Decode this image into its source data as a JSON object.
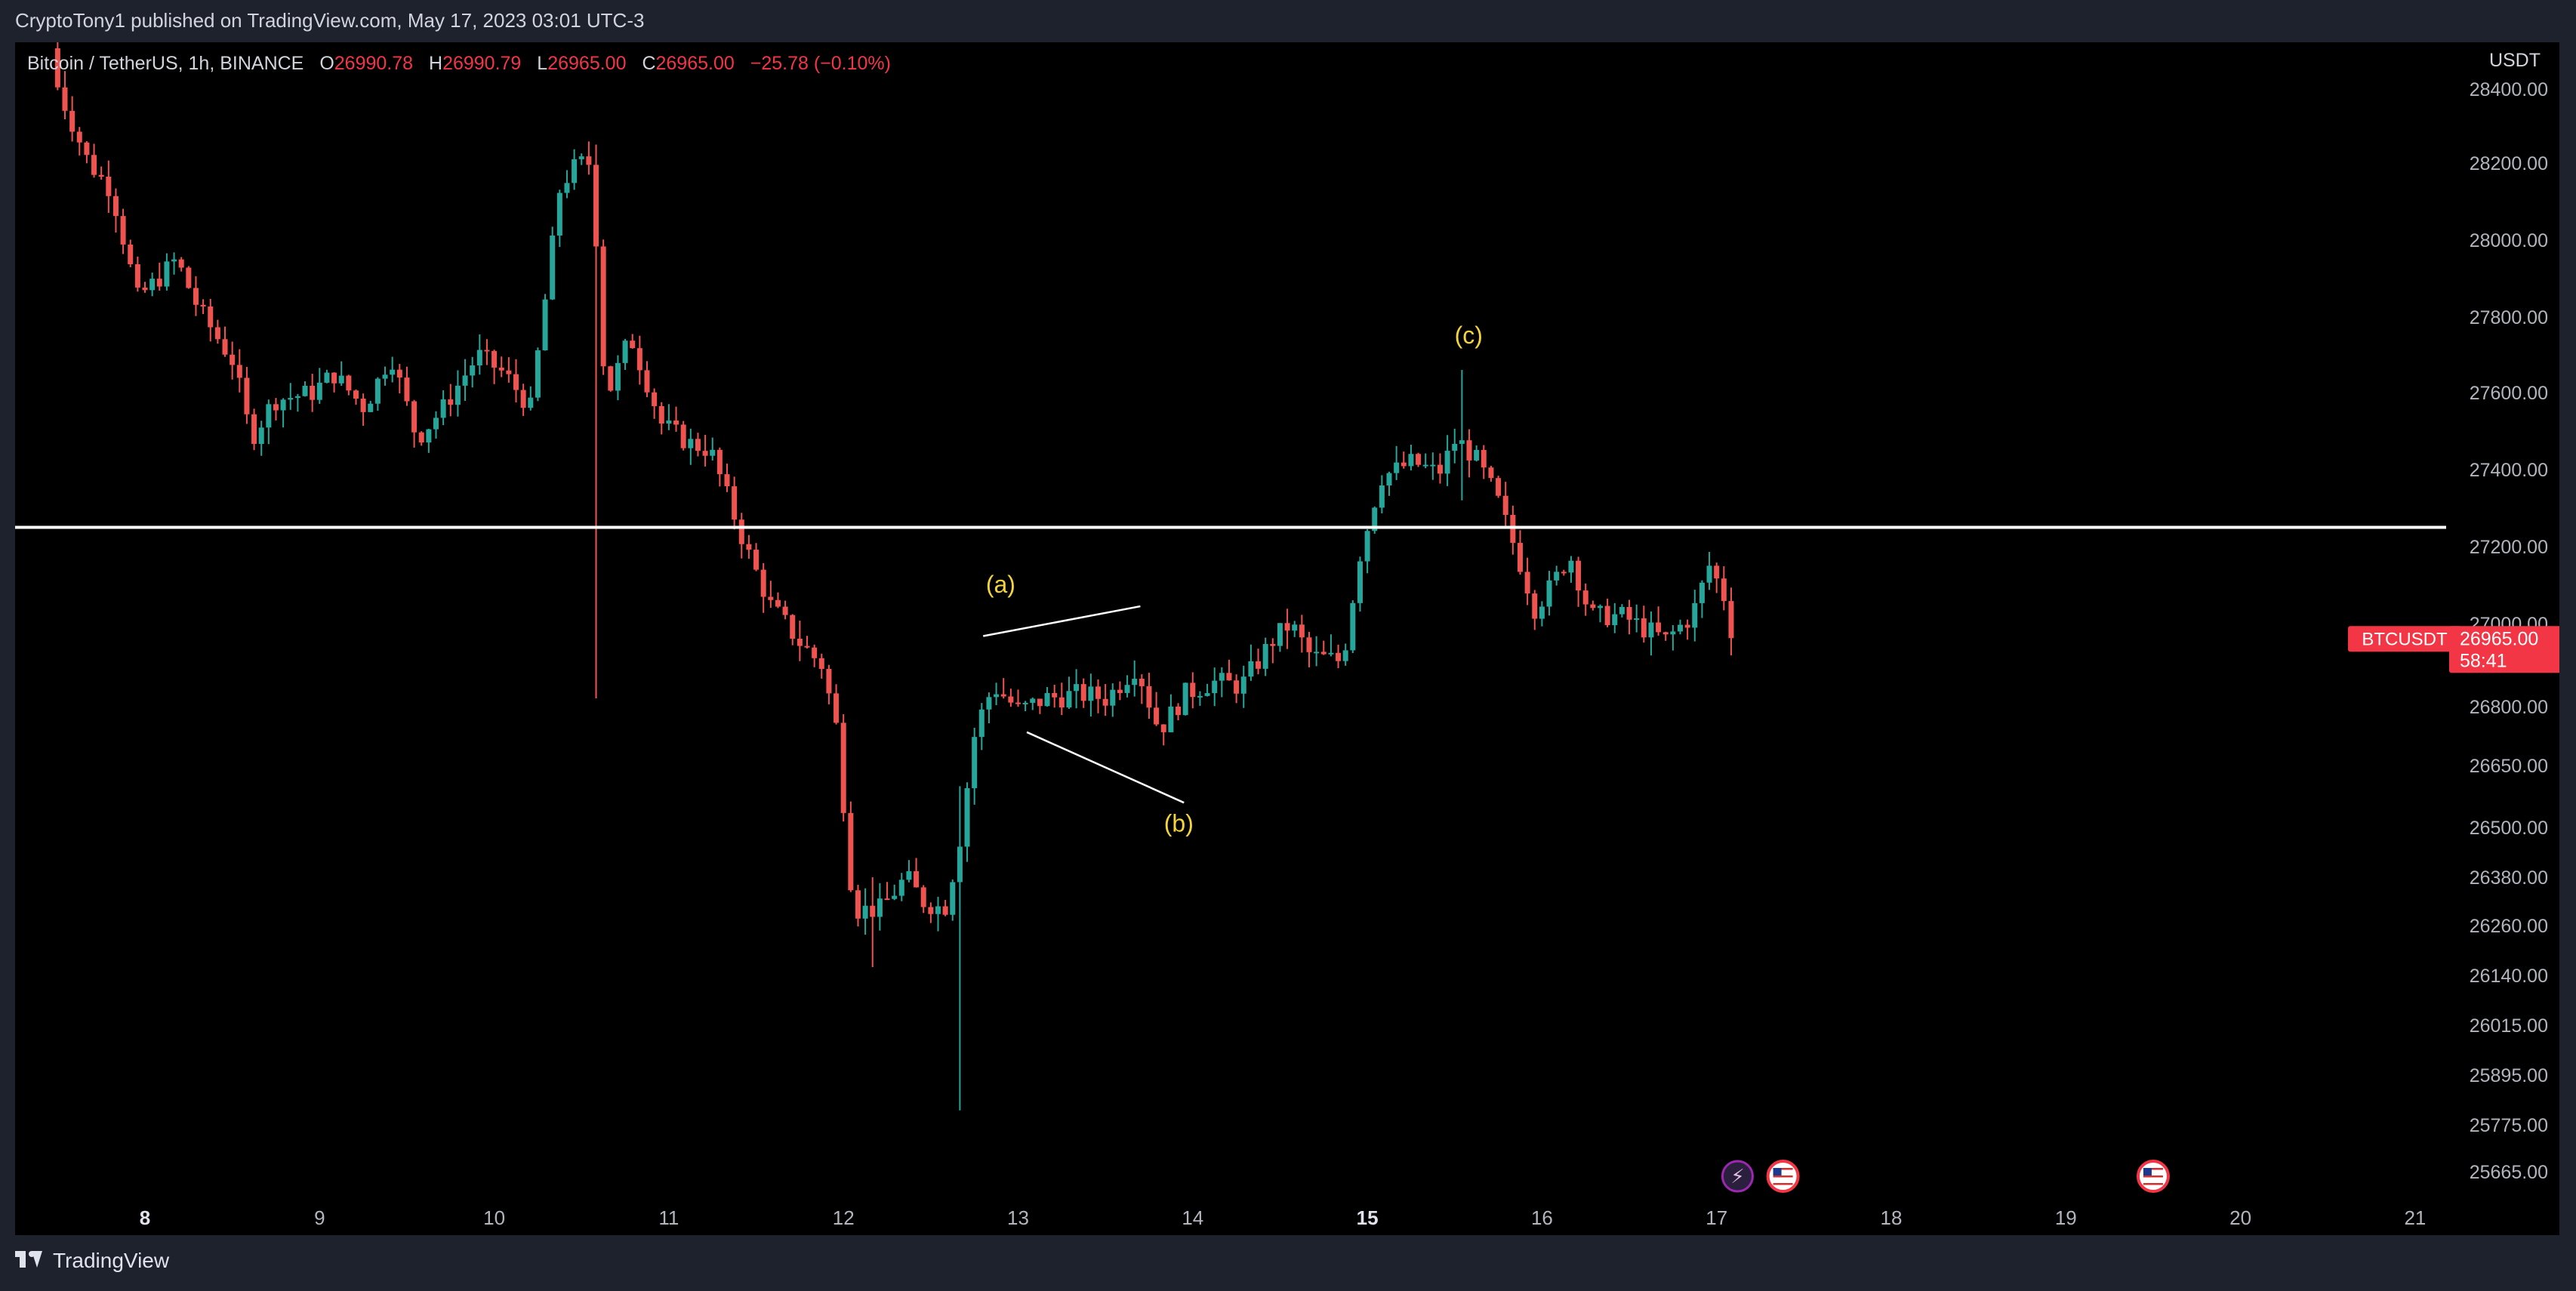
{
  "header": {
    "published": "CryptoTony1 published on TradingView.com, May 17, 2023 03:01 UTC-3"
  },
  "legend": {
    "symbol": "Bitcoin / TetherUS, 1h, BINANCE",
    "o_label": "O",
    "o_value": "26990.78",
    "h_label": "H",
    "h_value": "26990.79",
    "l_label": "L",
    "l_value": "26965.00",
    "c_label": "C",
    "c_value": "26965.00",
    "change": "−25.78 (−0.10%)"
  },
  "footer": {
    "brand": "TradingView"
  },
  "colors": {
    "up": "#26a69a",
    "down": "#ef5350",
    "background": "#000000",
    "axis_text": "#b2b5be",
    "annotation": "#f5d33a",
    "line": "#ffffff"
  },
  "chart_data": {
    "type": "candlestick",
    "currency": "USDT",
    "last_price_label": {
      "symbol": "BTCUSDT",
      "price": "26965.00",
      "countdown": "58:41"
    },
    "y_ticks": [
      "28400.00",
      "28200.00",
      "28000.00",
      "27800.00",
      "27600.00",
      "27400.00",
      "27200.00",
      "27000.00",
      "26800.00",
      "26650.00",
      "26500.00",
      "26380.00",
      "26260.00",
      "26140.00",
      "26015.00",
      "25895.00",
      "25775.00",
      "25665.00"
    ],
    "x_ticks": [
      {
        "label": "8",
        "bold": true
      },
      {
        "label": "9",
        "bold": false
      },
      {
        "label": "10",
        "bold": false
      },
      {
        "label": "11",
        "bold": false
      },
      {
        "label": "12",
        "bold": false
      },
      {
        "label": "13",
        "bold": false
      },
      {
        "label": "14",
        "bold": false
      },
      {
        "label": "15",
        "bold": true
      },
      {
        "label": "16",
        "bold": false
      },
      {
        "label": "17",
        "bold": false
      },
      {
        "label": "18",
        "bold": false
      },
      {
        "label": "19",
        "bold": false
      },
      {
        "label": "20",
        "bold": false
      },
      {
        "label": "21",
        "bold": false
      }
    ],
    "horizontal_line": 27250,
    "annotations": [
      {
        "text": "(a)",
        "x": 12.9,
        "y": 27080
      },
      {
        "text": "(b)",
        "x": 13.92,
        "y": 26490
      },
      {
        "text": "(c)",
        "x": 15.58,
        "y": 27730
      }
    ],
    "trendlines": [
      {
        "x1": 12.8,
        "y1": 26970,
        "x2": 13.7,
        "y2": 27045
      },
      {
        "x1": 13.05,
        "y1": 26735,
        "x2": 13.95,
        "y2": 26560
      }
    ],
    "events": [
      {
        "icon": "lightning-event-icon",
        "x": 17.12
      },
      {
        "icon": "us-flag-event-icon",
        "x": 17.38
      },
      {
        "icon": "us-flag-event-icon",
        "x": 19.5
      }
    ],
    "anchors": [
      [
        7.5,
        28450
      ],
      [
        7.72,
        28200
      ],
      [
        7.85,
        28130
      ],
      [
        8.0,
        27850
      ],
      [
        8.12,
        27900
      ],
      [
        8.22,
        27950
      ],
      [
        8.35,
        27820
      ],
      [
        8.55,
        27680
      ],
      [
        8.65,
        27480
      ],
      [
        8.78,
        27580
      ],
      [
        9.0,
        27600
      ],
      [
        9.12,
        27650
      ],
      [
        9.3,
        27560
      ],
      [
        9.45,
        27700
      ],
      [
        9.6,
        27480
      ],
      [
        9.75,
        27560
      ],
      [
        9.95,
        27700
      ],
      [
        10.1,
        27650
      ],
      [
        10.25,
        27560
      ],
      [
        10.42,
        28140
      ],
      [
        10.52,
        28200
      ],
      [
        10.6,
        28200
      ],
      [
        10.68,
        27580
      ],
      [
        10.82,
        27750
      ],
      [
        11.0,
        27520
      ],
      [
        11.15,
        27470
      ],
      [
        11.28,
        27450
      ],
      [
        11.4,
        27300
      ],
      [
        11.48,
        27200
      ],
      [
        11.62,
        27050
      ],
      [
        11.8,
        26950
      ],
      [
        11.92,
        26900
      ],
      [
        12.0,
        26750
      ],
      [
        12.1,
        26300
      ],
      [
        12.25,
        26300
      ],
      [
        12.4,
        26380
      ],
      [
        12.5,
        26320
      ],
      [
        12.62,
        26300
      ],
      [
        12.7,
        26450
      ],
      [
        12.8,
        26750
      ],
      [
        12.9,
        26850
      ],
      [
        13.05,
        26790
      ],
      [
        13.2,
        26820
      ],
      [
        13.4,
        26830
      ],
      [
        13.55,
        26820
      ],
      [
        13.72,
        26900
      ],
      [
        13.85,
        26740
      ],
      [
        14.0,
        26830
      ],
      [
        14.15,
        26860
      ],
      [
        14.32,
        26850
      ],
      [
        14.5,
        26960
      ],
      [
        14.6,
        27000
      ],
      [
        14.72,
        26920
      ],
      [
        14.9,
        26910
      ],
      [
        15.0,
        27180
      ],
      [
        15.12,
        27380
      ],
      [
        15.3,
        27420
      ],
      [
        15.45,
        27390
      ],
      [
        15.55,
        27480
      ],
      [
        15.66,
        27430
      ],
      [
        15.78,
        27330
      ],
      [
        15.9,
        27180
      ],
      [
        16.0,
        27040
      ],
      [
        16.1,
        27100
      ],
      [
        16.2,
        27180
      ],
      [
        16.32,
        27020
      ],
      [
        16.5,
        27020
      ],
      [
        16.62,
        26990
      ],
      [
        16.75,
        26960
      ],
      [
        16.9,
        27020
      ],
      [
        17.0,
        27150
      ],
      [
        17.08,
        27080
      ],
      [
        17.12,
        26960
      ]
    ],
    "special_wicks": [
      {
        "x": 10.58,
        "high": 28250,
        "low": 26820
      },
      {
        "x": 12.65,
        "high": 26600,
        "low": 25810
      },
      {
        "x": 12.18,
        "high": 26380,
        "low": 26160
      },
      {
        "x": 15.55,
        "high": 27660,
        "low": 27320
      }
    ]
  }
}
